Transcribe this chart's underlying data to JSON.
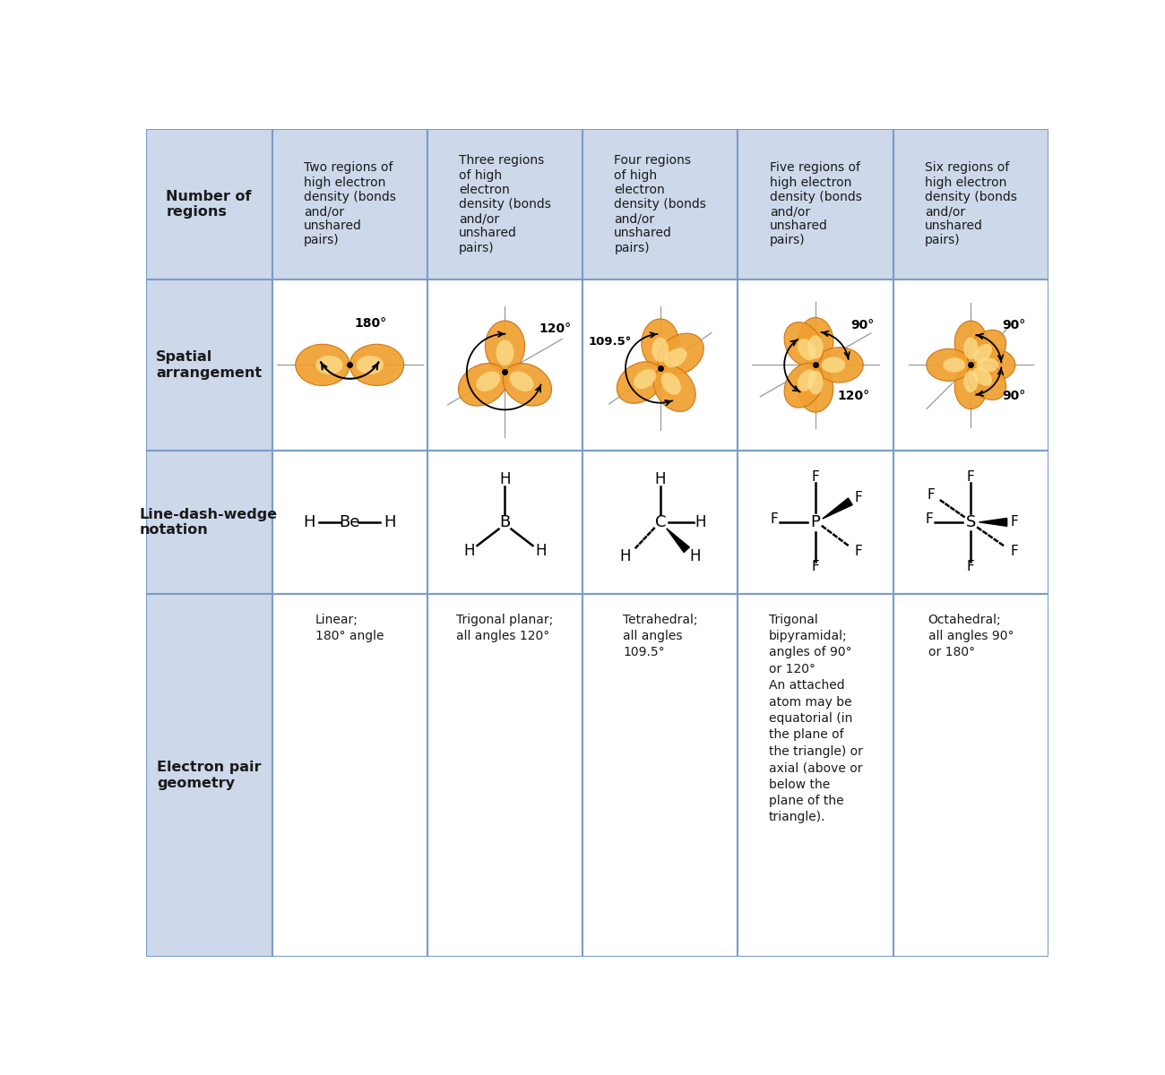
{
  "bg_color": "#cdd8ea",
  "white": "#ffffff",
  "border_color": "#7a9cc8",
  "text_dark": "#1a1a1a",
  "lobe_outer": "#e8922a",
  "lobe_inner": "#f5c96a",
  "lobe_highlight": "#fde9a0",
  "row_headers": [
    "Number of\nregions",
    "Spatial\narrangement",
    "Line-dash-wedge\nnotation",
    "Electron pair\ngeometry"
  ],
  "col_headers": [
    "Two regions of\nhigh electron\ndensity (bonds\nand/or\nunshared\npairs)",
    "Three regions\nof high\nelectron\ndensity (bonds\nand/or\nunshared\npairs)",
    "Four regions\nof high\nelectron\ndensity (bonds\nand/or\nunshared\npairs)",
    "Five regions of\nhigh electron\ndensity (bonds\nand/or\nunshared\npairs)",
    "Six regions of\nhigh electron\ndensity (bonds\nand/or\nunshared\npairs)"
  ],
  "geometry_text": [
    "Linear;\n180° angle",
    "Trigonal planar;\nall angles 120°",
    "Tetrahedral;\nall angles\n109.5°",
    "Trigonal\nbipyramidal;\nangles of 90°\nor 120°\nAn attached\natom may be\nequatorial (in\nthe plane of\nthe triangle) or\naxial (above or\nbelow the\nplane of the\ntriangle).",
    "Octahedral;\nall angles 90°\nor 180°"
  ]
}
